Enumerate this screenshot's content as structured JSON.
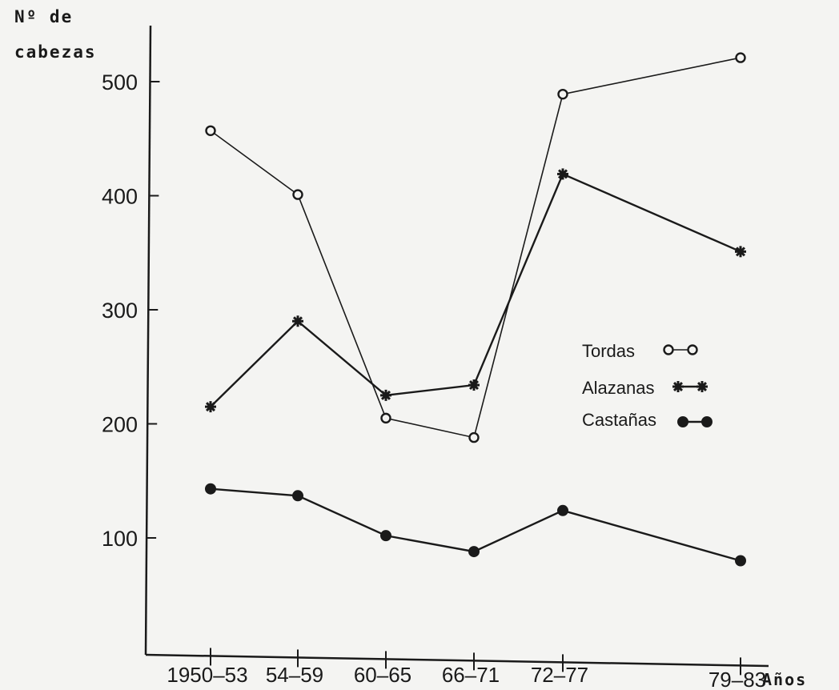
{
  "chart_data": {
    "type": "line",
    "ylabel_line1": "Nº de",
    "ylabel_line2": "cabezas",
    "xlabel": "Años",
    "categories": [
      "1950–53",
      "54–59",
      "60–65",
      "66–71",
      "72–77",
      "79–83"
    ],
    "yticks": [
      100,
      200,
      300,
      400,
      500
    ],
    "ylim": [
      0,
      580
    ],
    "grid": false,
    "legend_position": "right",
    "series": [
      {
        "name": "Tordas",
        "marker": "open-circle",
        "values": [
          457,
          401,
          205,
          188,
          489,
          521
        ]
      },
      {
        "name": "Alazanas",
        "marker": "asterisk",
        "values": [
          215,
          290,
          225,
          234,
          419,
          351
        ]
      },
      {
        "name": "Castañas",
        "marker": "filled-circle",
        "values": [
          143,
          137,
          102,
          88,
          124,
          80
        ]
      }
    ]
  },
  "colors": {
    "ink": "#1a1a1a",
    "paper": "#f4f4f2"
  }
}
